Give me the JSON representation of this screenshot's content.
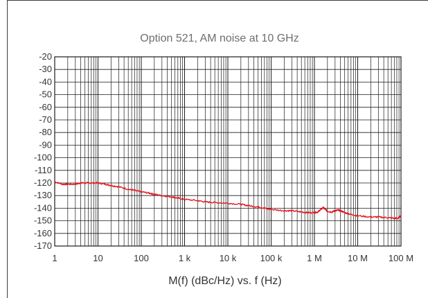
{
  "chart_data": {
    "type": "line",
    "title": "Option 521, AM noise at 10 GHz",
    "xlabel": "M(f) (dBc/Hz) vs. f (Hz)",
    "ylabel": "",
    "x_scale": "log",
    "xlim": [
      1,
      100000000
    ],
    "ylim": [
      -170,
      -20
    ],
    "grid": true,
    "x_ticks": [
      {
        "value": 1,
        "label": "1"
      },
      {
        "value": 10,
        "label": "10"
      },
      {
        "value": 100,
        "label": "100"
      },
      {
        "value": 1000,
        "label": "1 k"
      },
      {
        "value": 10000,
        "label": "10 k"
      },
      {
        "value": 100000,
        "label": "100 k"
      },
      {
        "value": 1000000,
        "label": "1 M"
      },
      {
        "value": 10000000,
        "label": "10 M"
      },
      {
        "value": 100000000,
        "label": "100 M"
      }
    ],
    "y_ticks": [
      {
        "value": -20,
        "label": "-20"
      },
      {
        "value": -30,
        "label": "-30"
      },
      {
        "value": -40,
        "label": "-40"
      },
      {
        "value": -50,
        "label": "-50"
      },
      {
        "value": -60,
        "label": "-60"
      },
      {
        "value": -70,
        "label": "-70"
      },
      {
        "value": -80,
        "label": "-80"
      },
      {
        "value": -90,
        "label": "-90"
      },
      {
        "value": -100,
        "label": "-100"
      },
      {
        "value": -110,
        "label": "-110"
      },
      {
        "value": -120,
        "label": "-120"
      },
      {
        "value": -130,
        "label": "-130"
      },
      {
        "value": -140,
        "label": "-140"
      },
      {
        "value": -150,
        "label": "-150"
      },
      {
        "value": -160,
        "label": "-160"
      },
      {
        "value": -170,
        "label": "-170"
      }
    ],
    "series": [
      {
        "color": "#e8141e",
        "points": [
          [
            1,
            -119
          ],
          [
            1.5,
            -121
          ],
          [
            2,
            -121
          ],
          [
            3,
            -121
          ],
          [
            4,
            -120
          ],
          [
            5,
            -120
          ],
          [
            7,
            -120
          ],
          [
            10,
            -120
          ],
          [
            15,
            -121
          ],
          [
            20,
            -122
          ],
          [
            30,
            -123
          ],
          [
            50,
            -125
          ],
          [
            70,
            -126
          ],
          [
            100,
            -127
          ],
          [
            150,
            -128
          ],
          [
            200,
            -129
          ],
          [
            300,
            -130
          ],
          [
            500,
            -131
          ],
          [
            700,
            -132
          ],
          [
            1000,
            -133
          ],
          [
            2000,
            -134
          ],
          [
            3000,
            -135
          ],
          [
            5000,
            -135.5
          ],
          [
            10000,
            -136
          ],
          [
            20000,
            -137
          ],
          [
            30000,
            -138
          ],
          [
            50000,
            -139
          ],
          [
            70000,
            -140
          ],
          [
            100000,
            -141
          ],
          [
            200000,
            -142
          ],
          [
            300000,
            -142
          ],
          [
            500000,
            -143
          ],
          [
            700000,
            -143.5
          ],
          [
            1000000,
            -143.5
          ],
          [
            1200000,
            -143
          ],
          [
            1400000,
            -141
          ],
          [
            1600000,
            -139.5
          ],
          [
            1800000,
            -141
          ],
          [
            2000000,
            -142.5
          ],
          [
            2500000,
            -143
          ],
          [
            3000000,
            -142
          ],
          [
            3500000,
            -141.5
          ],
          [
            4000000,
            -142
          ],
          [
            5000000,
            -143.5
          ],
          [
            7000000,
            -145
          ],
          [
            10000000,
            -146
          ],
          [
            20000000,
            -147
          ],
          [
            30000000,
            -147
          ],
          [
            50000000,
            -147.5
          ],
          [
            70000000,
            -148
          ],
          [
            85000000,
            -148
          ],
          [
            100000000,
            -146
          ]
        ]
      }
    ]
  }
}
